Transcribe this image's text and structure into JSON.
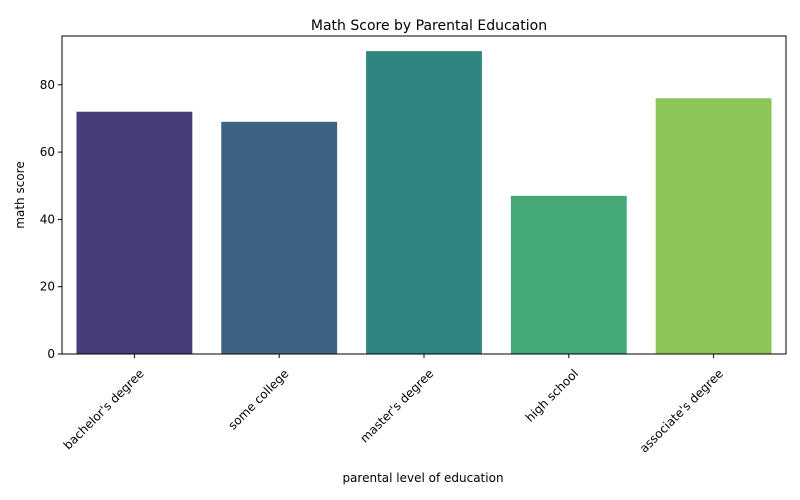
{
  "chart_data": {
    "type": "bar",
    "title": "Math Score by Parental Education",
    "xlabel": "parental level of education",
    "ylabel": "math score",
    "categories": [
      "bachelor's degree",
      "some college",
      "master's degree",
      "high school",
      "associate's degree"
    ],
    "values": [
      72,
      69,
      90,
      47,
      76
    ],
    "colors": [
      "#483d78",
      "#3b6382",
      "#2e8580",
      "#45a977",
      "#8bc557"
    ],
    "ylim": [
      0,
      94.5
    ],
    "yticks": [
      0,
      20,
      40,
      60,
      80
    ],
    "ytick_labels": [
      "0",
      "20",
      "40",
      "60",
      "80"
    ],
    "grid": false,
    "legend": "none"
  }
}
